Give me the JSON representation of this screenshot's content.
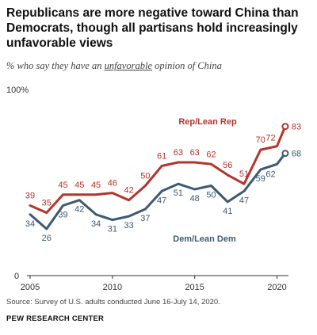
{
  "title": "Republicans are more negative toward China than Democrats, though all partisans hold increasingly unfavorable views",
  "subtitle": {
    "before": "% who say they have an ",
    "emphasis": "unfavorable",
    "after": " opinion of China"
  },
  "source": "Source: Survey of U.S. adults conducted June 16-July 14, 2020.",
  "organization": "PEW RESEARCH CENTER",
  "colors": {
    "rep": "#b5342b",
    "dem": "#3d5a73"
  },
  "chart_data": {
    "type": "line",
    "ylim": [
      0,
      100
    ],
    "y_top_label": "100%",
    "y_bottom_label": "0",
    "xlim": [
      2005,
      2020.6
    ],
    "x_ticks": [
      2005,
      2010,
      2015,
      2020
    ],
    "x_tick_labels": [
      "2005",
      "2010",
      "2015",
      "2020"
    ],
    "series": [
      {
        "name": "Rep/Lean Rep",
        "key": "rep",
        "x": [
          2005,
          2006,
          2007,
          2008,
          2009,
          2010,
          2011,
          2012,
          2013,
          2014,
          2015,
          2016,
          2017,
          2018,
          2019,
          2020,
          2020.5
        ],
        "values": [
          39,
          35,
          45,
          45,
          45,
          46,
          42,
          50,
          61,
          63,
          63,
          62,
          56,
          51,
          70,
          72,
          83
        ]
      },
      {
        "name": "Dem/Lean Dem",
        "key": "dem",
        "x": [
          2005,
          2006,
          2007,
          2008,
          2009,
          2010,
          2011,
          2012,
          2013,
          2014,
          2015,
          2016,
          2017,
          2018,
          2019,
          2020,
          2020.5
        ],
        "values": [
          34,
          26,
          39,
          42,
          34,
          31,
          33,
          37,
          47,
          51,
          48,
          50,
          41,
          47,
          59,
          62,
          68
        ]
      }
    ]
  }
}
